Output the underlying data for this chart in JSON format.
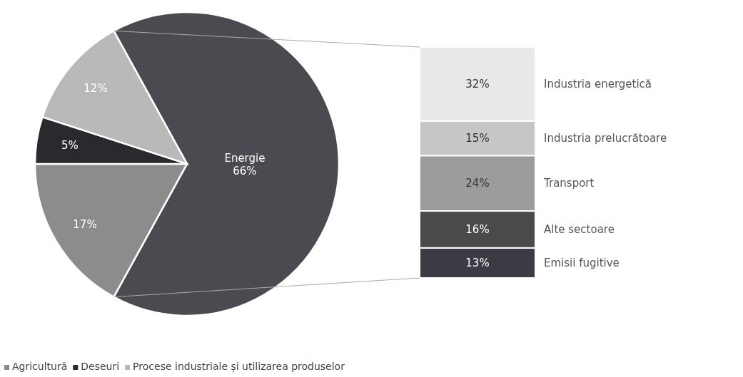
{
  "chart_data": [
    {
      "type": "pie",
      "categories": [
        "Energie",
        "Agricultură",
        "Deseuri",
        "Procese industriale și utilizarea produselor"
      ],
      "values": [
        66,
        17,
        5,
        12
      ],
      "colors": [
        "#4a4a50",
        "#8c8c8c",
        "#2a2a2e",
        "#b9b9b9"
      ],
      "value_labels": [
        "66%",
        "17%",
        "5%",
        "12%"
      ],
      "legend": "bottom"
    },
    {
      "type": "bar",
      "stacked": true,
      "categories": [
        null
      ],
      "series": [
        {
          "name": "Emisii fugitive",
          "color": "#3c3a42",
          "values": [
            13
          ],
          "value_labels": [
            "13%"
          ]
        },
        {
          "name": "Alte sectoare",
          "color": "#4a4a4a",
          "values": [
            16
          ],
          "value_labels": [
            "16%"
          ]
        },
        {
          "name": "Transport",
          "color": "#9c9c9c",
          "values": [
            24
          ],
          "value_labels": [
            "24%"
          ]
        },
        {
          "name": "Industria prelucrătoare",
          "color": "#c6c6c6",
          "values": [
            15
          ],
          "value_labels": [
            "15%"
          ]
        },
        {
          "name": "Industria energetică",
          "color": "#e8e8e8",
          "values": [
            32
          ],
          "value_labels": [
            "32%"
          ]
        }
      ]
    }
  ]
}
